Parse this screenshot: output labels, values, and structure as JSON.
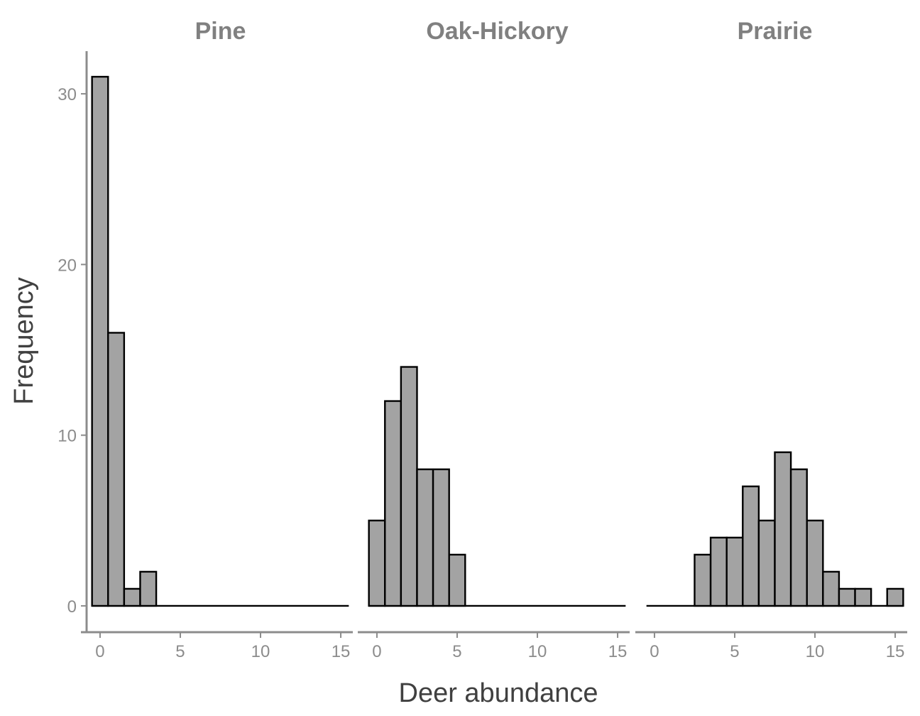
{
  "chart_data": {
    "type": "bar",
    "xlabel": "Deer abundance",
    "ylabel": "Frequency",
    "ylim": [
      -1.5,
      32.5
    ],
    "xlim": [
      -0.75,
      15.75
    ],
    "y_ticks": [
      0,
      10,
      20,
      30
    ],
    "x_ticks": [
      0,
      5,
      10,
      15
    ],
    "bin_width": 1,
    "bins": [
      0,
      1,
      2,
      3,
      4,
      5,
      6,
      7,
      8,
      9,
      10,
      11,
      12,
      13,
      14,
      15
    ],
    "grid": false,
    "colors": {
      "bar_fill": "#a3a3a3",
      "bar_stroke": "#000000",
      "axis": "#8c8c8c",
      "facet_title": "#808080",
      "axis_title": "#404040"
    },
    "facets": [
      {
        "title": "Pine",
        "values": [
          31,
          16,
          1,
          2,
          0,
          0,
          0,
          0,
          0,
          0,
          0,
          0,
          0,
          0,
          0,
          0
        ]
      },
      {
        "title": "Oak-Hickory",
        "values": [
          5,
          12,
          14,
          8,
          8,
          3,
          0,
          0,
          0,
          0,
          0,
          0,
          0,
          0,
          0,
          0
        ]
      },
      {
        "title": "Prairie",
        "values": [
          0,
          0,
          0,
          3,
          4,
          4,
          7,
          5,
          9,
          8,
          5,
          2,
          1,
          1,
          0,
          1
        ]
      }
    ]
  }
}
